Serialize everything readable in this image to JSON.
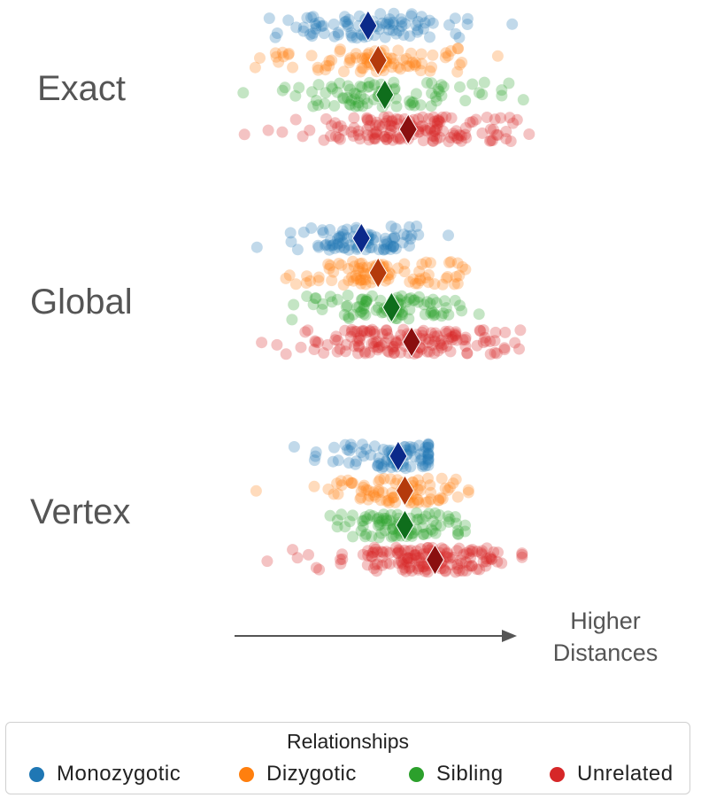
{
  "chart_data": {
    "type": "scatter",
    "title": "",
    "xlabel": "",
    "ylabel": "",
    "panels": [
      "Exact",
      "Global",
      "Vertex"
    ],
    "arrow_label": "Higher Distances",
    "legend": {
      "title": "Relationships",
      "placement": "bottom"
    },
    "series": [
      {
        "name": "Monozygotic",
        "color": "#1f77b4",
        "marker_color": "#0b2a8a",
        "means": {
          "Exact": 0.46,
          "Global": 0.44,
          "Vertex": 0.55
        },
        "spread": {
          "Exact": [
            0.04,
            0.96
          ],
          "Global": [
            0.05,
            0.7
          ],
          "Vertex": [
            0.03,
            0.64
          ]
        }
      },
      {
        "name": "Dizygotic",
        "color": "#ff7f0e",
        "marker_color": "#b43a0c",
        "means": {
          "Exact": 0.49,
          "Global": 0.49,
          "Vertex": 0.57
        },
        "spread": {
          "Exact": [
            0.0,
            0.91
          ],
          "Global": [
            0.04,
            0.78
          ],
          "Vertex": [
            0.08,
            0.76
          ]
        }
      },
      {
        "name": "Sibling",
        "color": "#2ca02c",
        "marker_color": "#0f6e1c",
        "means": {
          "Exact": 0.51,
          "Global": 0.53,
          "Vertex": 0.57
        },
        "spread": {
          "Exact": [
            0.03,
            0.93
          ],
          "Global": [
            0.03,
            0.8
          ],
          "Vertex": [
            0.07,
            0.75
          ]
        }
      },
      {
        "name": "Unrelated",
        "color": "#d62728",
        "marker_color": "#8a0f0f",
        "means": {
          "Exact": 0.58,
          "Global": 0.59,
          "Vertex": 0.66
        },
        "spread": {
          "Exact": [
            0.08,
            1.0
          ],
          "Global": [
            0.06,
            0.95
          ],
          "Vertex": [
            0.04,
            0.92
          ]
        }
      }
    ],
    "grid": false
  }
}
